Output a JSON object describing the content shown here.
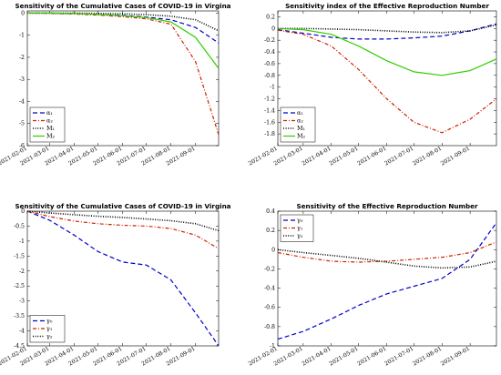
{
  "chart_data": [
    {
      "type": "line",
      "title": "Sensitivity of the Cumulative Cases of COVID-19 in Virgina",
      "xlabel": "",
      "ylabel": "",
      "x": [
        "2021-02-01",
        "2021-03-01",
        "2021-04-01",
        "2021-05-01",
        "2021-06-01",
        "2021-07-01",
        "2021-08-01",
        "2021-09-01",
        "2021-09-30"
      ],
      "xticks": [
        "2021-02-01",
        "2021-03-01",
        "2021-04-01",
        "2021-05-01",
        "2021-06-01",
        "2021-07-01",
        "2021-08-01",
        "2021-09-01"
      ],
      "yticks": [
        "0",
        "-1",
        "-2",
        "-3",
        "-4",
        "-5",
        "-6"
      ],
      "ylim": [
        -6,
        0.1
      ],
      "grid": false,
      "legend": "bottom-left",
      "series": [
        {
          "name": "α₁",
          "color": "#0000cc",
          "dash": "dashed",
          "values": [
            0,
            0,
            -0.02,
            -0.06,
            -0.1,
            -0.18,
            -0.3,
            -0.65,
            -1.35
          ]
        },
        {
          "name": "α₂",
          "color": "#cc2200",
          "dash": "dashdot",
          "values": [
            0,
            -0.01,
            -0.04,
            -0.09,
            -0.16,
            -0.26,
            -0.5,
            -2.2,
            -5.5
          ]
        },
        {
          "name": "M₁",
          "color": "#000000",
          "dash": "dotted",
          "values": [
            0,
            0,
            0,
            -0.01,
            -0.03,
            -0.07,
            -0.14,
            -0.3,
            -0.8
          ]
        },
        {
          "name": "M₂",
          "color": "#33cc00",
          "dash": "solid",
          "values": [
            0,
            0,
            -0.02,
            -0.06,
            -0.12,
            -0.2,
            -0.4,
            -1.1,
            -2.5
          ]
        }
      ]
    },
    {
      "type": "line",
      "title": "Sensitivity index of the Effective Reproduction Number",
      "xlabel": "",
      "ylabel": "",
      "x": [
        "2021-02-01",
        "2021-03-01",
        "2021-04-01",
        "2021-05-01",
        "2021-06-01",
        "2021-07-01",
        "2021-08-01",
        "2021-09-01",
        "2021-09-30"
      ],
      "xticks": [
        "2021-02-01",
        "2021-03-01",
        "2021-04-01",
        "2021-05-01",
        "2021-06-01",
        "2021-07-01",
        "2021-08-01",
        "2021-09-01"
      ],
      "yticks": [
        "0.2",
        "0",
        "-0.2",
        "-0.4",
        "-0.6",
        "-0.8",
        "-1",
        "-1.2",
        "-1.4",
        "-1.6",
        "-1.8"
      ],
      "ylim": [
        -2,
        0.3
      ],
      "grid": false,
      "legend": "bottom-left",
      "series": [
        {
          "name": "α₁",
          "color": "#0000cc",
          "dash": "dashed",
          "values": [
            -0.02,
            -0.08,
            -0.15,
            -0.18,
            -0.18,
            -0.16,
            -0.13,
            -0.04,
            0.08
          ]
        },
        {
          "name": "α₂",
          "color": "#cc2200",
          "dash": "dashdot",
          "values": [
            -0.03,
            -0.1,
            -0.3,
            -0.7,
            -1.2,
            -1.6,
            -1.78,
            -1.55,
            -1.2
          ]
        },
        {
          "name": "M₁",
          "color": "#000000",
          "dash": "dotted",
          "values": [
            0,
            0,
            -0.01,
            -0.02,
            -0.04,
            -0.06,
            -0.07,
            -0.04,
            0.06
          ]
        },
        {
          "name": "M₂",
          "color": "#33cc00",
          "dash": "solid",
          "values": [
            0,
            -0.02,
            -0.1,
            -0.3,
            -0.55,
            -0.74,
            -0.8,
            -0.72,
            -0.52
          ]
        }
      ]
    },
    {
      "type": "line",
      "title": "Sensitivity of the Cumulative Cases of COVID-19 in Virgina",
      "xlabel": "",
      "ylabel": "",
      "x": [
        "2021-02-01",
        "2021-03-01",
        "2021-04-01",
        "2021-05-01",
        "2021-06-01",
        "2021-07-01",
        "2021-08-01",
        "2021-09-01",
        "2021-09-30"
      ],
      "xticks": [
        "2021-02-01",
        "2021-03-01",
        "2021-04-01",
        "2021-05-01",
        "2021-06-01",
        "2021-07-01",
        "2021-08-01",
        "2021-09-01"
      ],
      "yticks": [
        "0",
        "-0.5",
        "-1",
        "-1.5",
        "-2",
        "-2.5",
        "-3",
        "-3.5",
        "-4",
        "-4.5"
      ],
      "ylim": [
        -4.5,
        0
      ],
      "grid": false,
      "legend": "bottom-left",
      "series": [
        {
          "name": "γ₀",
          "color": "#0000cc",
          "dash": "dashed",
          "values": [
            0,
            -0.3,
            -0.8,
            -1.35,
            -1.7,
            -1.8,
            -2.3,
            -3.4,
            -4.5
          ]
        },
        {
          "name": "γ₁",
          "color": "#cc2200",
          "dash": "dashdot",
          "values": [
            0,
            -0.18,
            -0.33,
            -0.42,
            -0.47,
            -0.5,
            -0.58,
            -0.8,
            -1.25
          ]
        },
        {
          "name": "γ₂",
          "color": "#000000",
          "dash": "dotted",
          "values": [
            0,
            -0.06,
            -0.12,
            -0.17,
            -0.21,
            -0.26,
            -0.32,
            -0.42,
            -0.65
          ]
        }
      ]
    },
    {
      "type": "line",
      "title": "Sensitivity of the Effective Reproduction Number",
      "xlabel": "",
      "ylabel": "",
      "x": [
        "2021-02-01",
        "2021-03-01",
        "2021-04-01",
        "2021-05-01",
        "2021-06-01",
        "2021-07-01",
        "2021-08-01",
        "2021-09-01",
        "2021-09-30"
      ],
      "xticks": [
        "2021-02-01",
        "2021-03-01",
        "2021-04-01",
        "2021-05-01",
        "2021-06-01",
        "2021-07-01",
        "2021-08-01",
        "2021-09-01"
      ],
      "yticks": [
        "0.4",
        "0.2",
        "0",
        "-0.2",
        "-0.4",
        "-0.6",
        "-0.8",
        "-1"
      ],
      "ylim": [
        -1,
        0.4
      ],
      "grid": false,
      "legend": "top-left",
      "series": [
        {
          "name": "γ₀",
          "color": "#0000cc",
          "dash": "dashed",
          "values": [
            -0.93,
            -0.85,
            -0.72,
            -0.58,
            -0.46,
            -0.38,
            -0.3,
            -0.1,
            0.28
          ]
        },
        {
          "name": "γ₁",
          "color": "#cc2200",
          "dash": "dashdot",
          "values": [
            -0.03,
            -0.08,
            -0.12,
            -0.13,
            -0.12,
            -0.1,
            -0.08,
            -0.03,
            0.08
          ]
        },
        {
          "name": "γ₂",
          "color": "#000000",
          "dash": "dotted",
          "values": [
            0,
            -0.03,
            -0.06,
            -0.09,
            -0.13,
            -0.17,
            -0.19,
            -0.18,
            -0.12
          ]
        }
      ]
    }
  ]
}
